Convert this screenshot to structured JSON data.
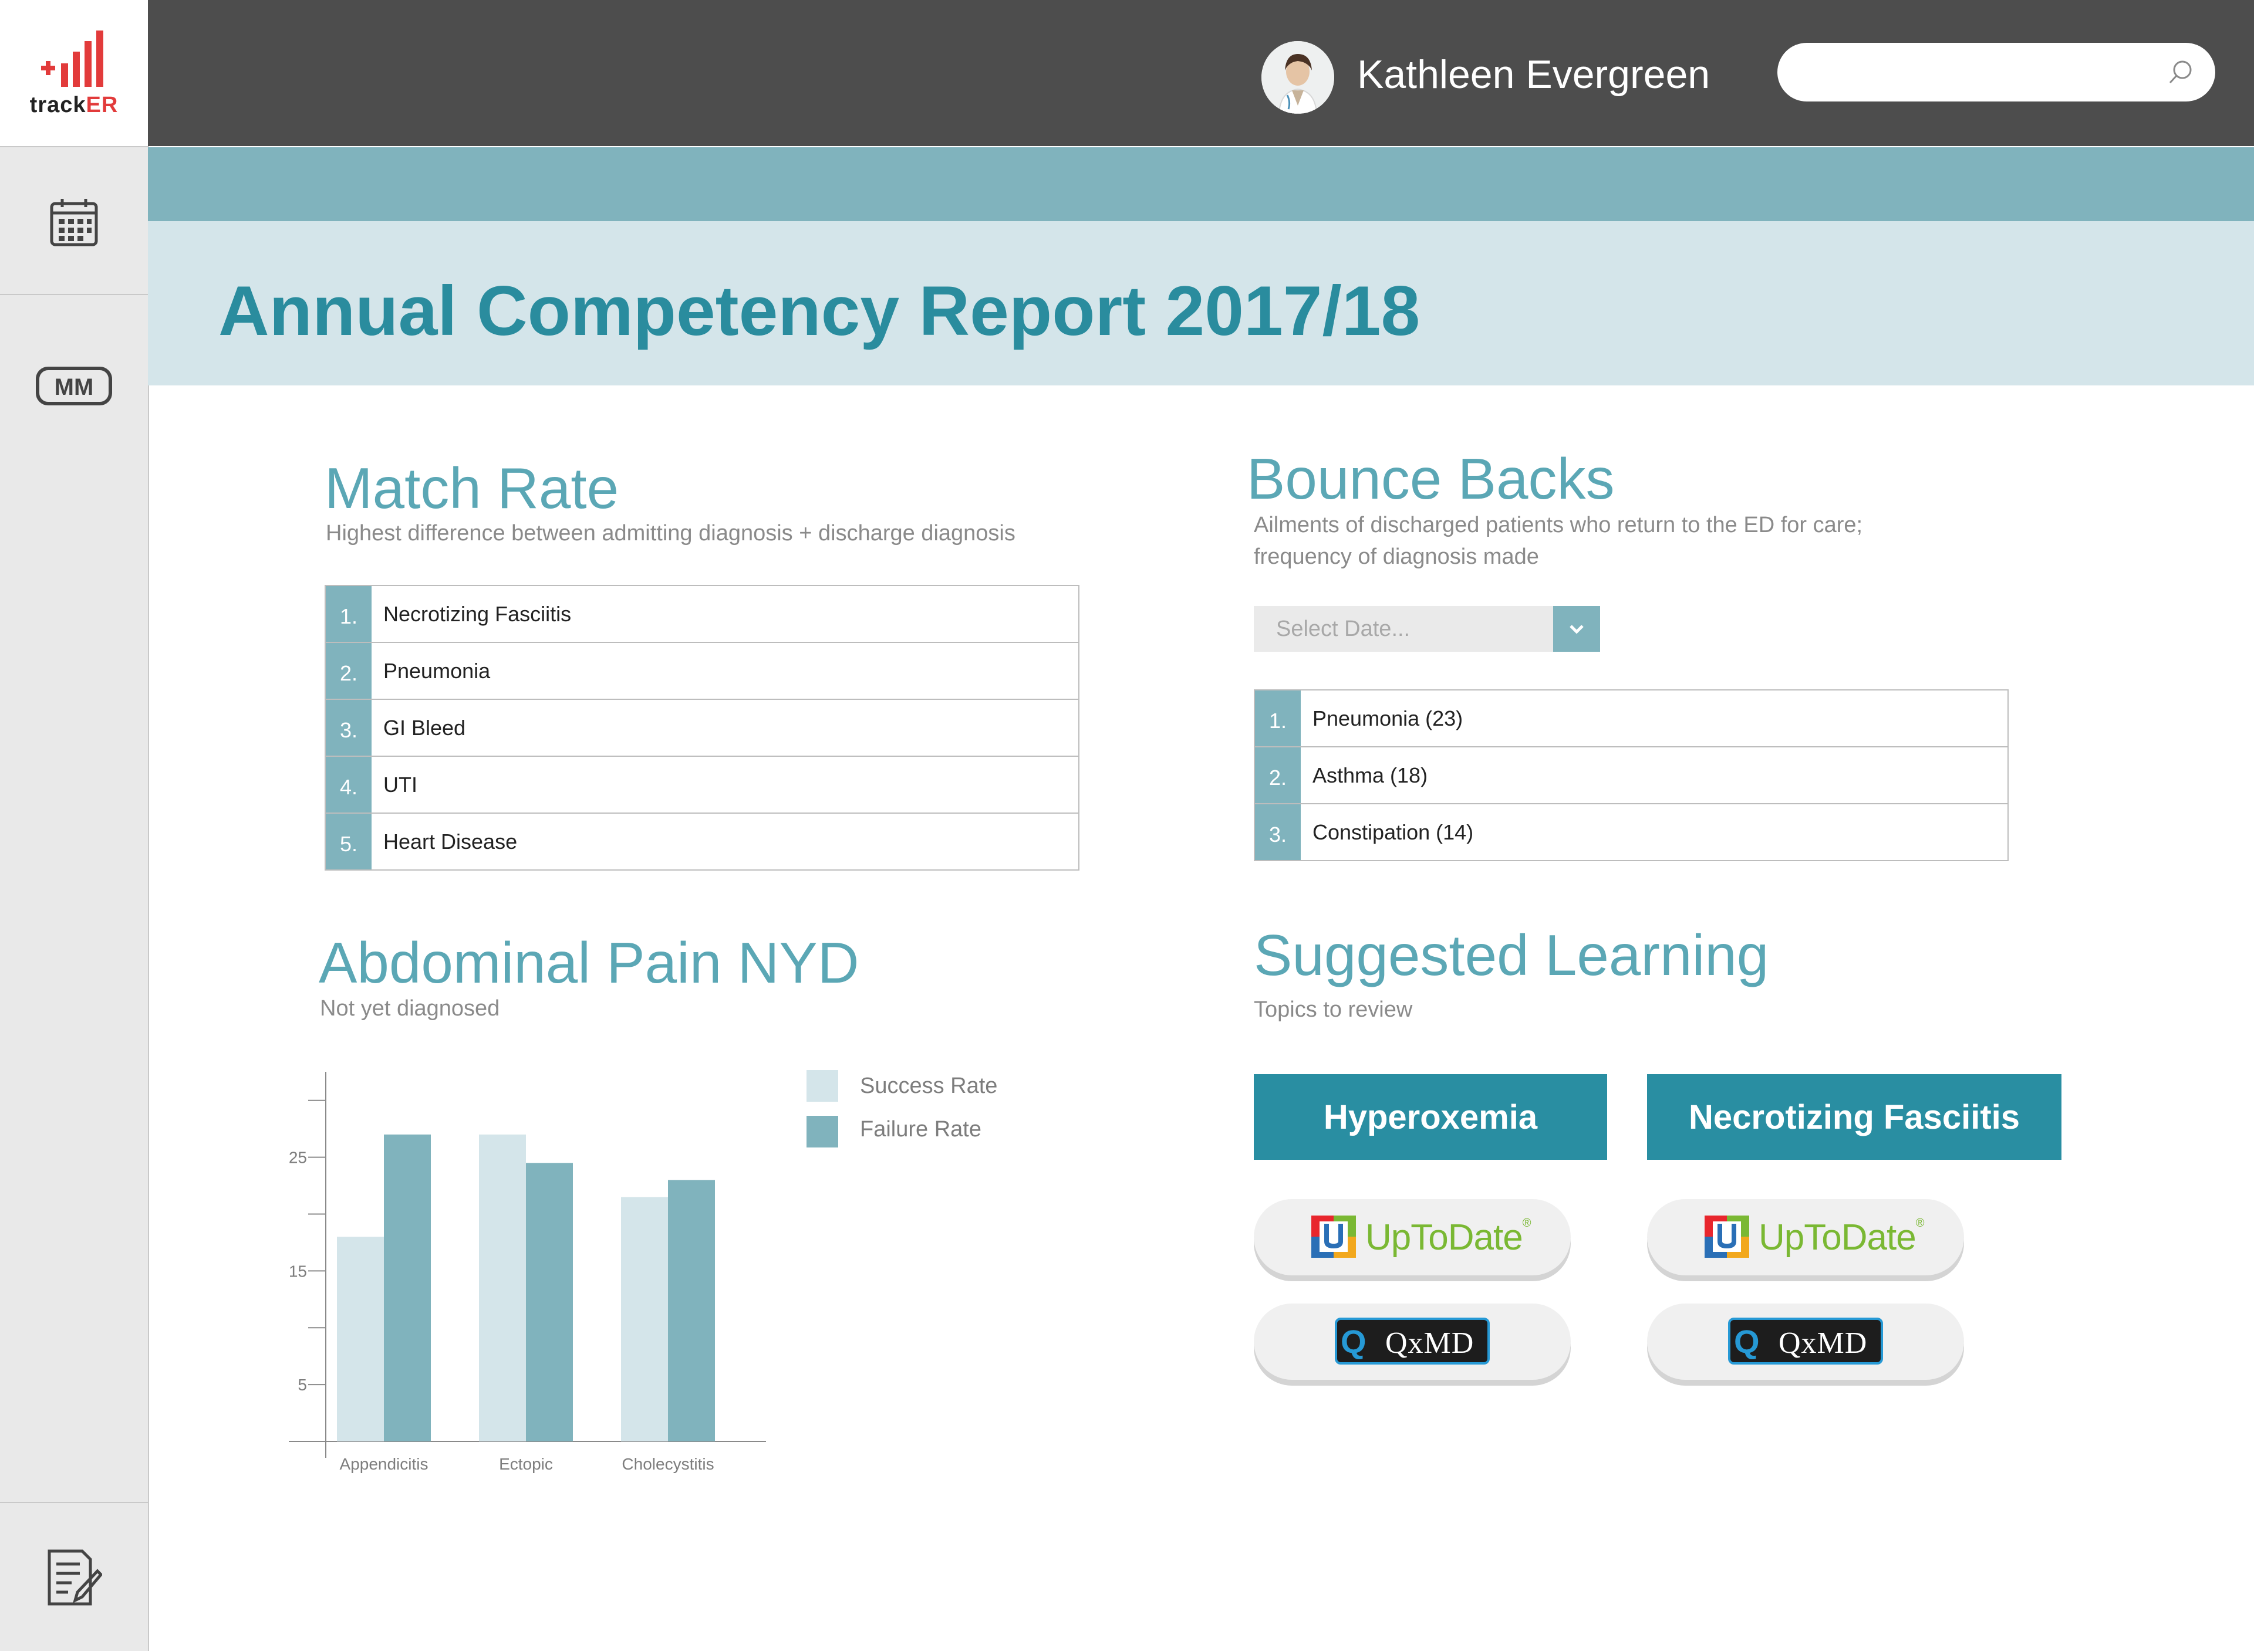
{
  "app": {
    "logo_text_a": "track",
    "logo_text_b": "ER"
  },
  "sidebar": {
    "items": [
      {
        "icon": "calendar-icon"
      },
      {
        "icon": "mm-icon"
      },
      {
        "icon": "notes-icon"
      }
    ]
  },
  "header": {
    "user_name": "Kathleen Evergreen",
    "search_placeholder": ""
  },
  "page": {
    "title": "Annual Competency Report 2017/18"
  },
  "match_rate": {
    "title": "Match Rate",
    "subtitle": "Highest difference between admitting diagnosis + discharge diagnosis",
    "items": [
      {
        "num": "1.",
        "label": "Necrotizing Fasciitis"
      },
      {
        "num": "2.",
        "label": "Pneumonia"
      },
      {
        "num": "3.",
        "label": "GI Bleed"
      },
      {
        "num": "4.",
        "label": "UTI"
      },
      {
        "num": "5.",
        "label": "Heart Disease"
      }
    ]
  },
  "bounce_backs": {
    "title": "Bounce Backs",
    "subtitle_line1": "Ailments of discharged patients who return to the ED for care;",
    "subtitle_line2": "frequency of diagnosis made",
    "date_select_placeholder": "Select Date...",
    "items": [
      {
        "num": "1.",
        "label": "Pneumonia (23)"
      },
      {
        "num": "2.",
        "label": "Asthma (18)"
      },
      {
        "num": "3.",
        "label": "Constipation (14)"
      }
    ]
  },
  "abdominal_pain": {
    "title": "Abdominal Pain NYD",
    "subtitle": "Not yet diagnosed"
  },
  "chart_data": {
    "type": "bar",
    "categories": [
      "Appendicitis",
      "Ectopic",
      "Cholecystitis"
    ],
    "series": [
      {
        "name": "Success Rate",
        "values": [
          18,
          27,
          21.5
        ],
        "color": "#d4e5ea"
      },
      {
        "name": "Failure Rate",
        "values": [
          27,
          24.5,
          23
        ],
        "color": "#80b3bd"
      }
    ],
    "yticks": [
      5,
      15,
      25
    ],
    "ylim": [
      0,
      32
    ],
    "legend": "top-right",
    "grid": false
  },
  "suggested_learning": {
    "title": "Suggested Learning",
    "subtitle": "Topics to review",
    "topics": [
      {
        "label": "Hyperoxemia",
        "uptodate": "UpToDate",
        "qxmd": "QxMD"
      },
      {
        "label": "Necrotizing Fasciitis",
        "uptodate": "UpToDate",
        "qxmd": "QxMD"
      }
    ]
  },
  "colors": {
    "header_bg": "#4d4d4d",
    "accent_teal": "#298ea2",
    "bar_teal": "#80b3bd",
    "light_teal": "#d4e5ea",
    "logo_red": "#e23b3b"
  }
}
